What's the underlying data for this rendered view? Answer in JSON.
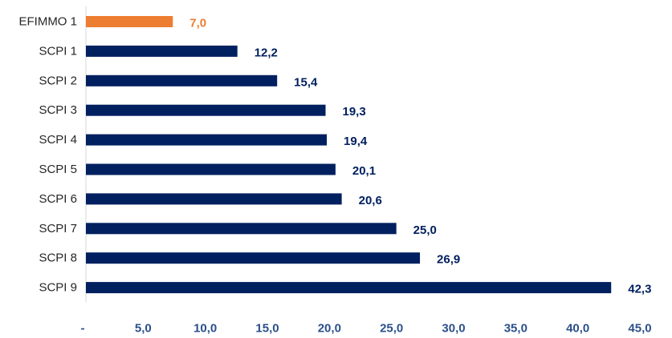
{
  "chart_data": {
    "type": "bar",
    "orientation": "horizontal",
    "categories": [
      "EFIMMO 1",
      "SCPI 1",
      "SCPI 2",
      "SCPI 3",
      "SCPI 4",
      "SCPI 5",
      "SCPI 6",
      "SCPI 7",
      "SCPI 8",
      "SCPI 9"
    ],
    "values": [
      7.0,
      12.2,
      15.4,
      19.3,
      19.4,
      20.1,
      20.6,
      25.0,
      26.9,
      42.3
    ],
    "value_labels": [
      "7,0",
      "12,2",
      "15,4",
      "19,3",
      "19,4",
      "20,1",
      "20,6",
      "25,0",
      "26,9",
      "42,3"
    ],
    "x_ticks": [
      0,
      5,
      10,
      15,
      20,
      25,
      30,
      35,
      40,
      45
    ],
    "x_tick_labels": [
      "-",
      "5,0",
      "10,0",
      "15,0",
      "20,0",
      "25,0",
      "30,0",
      "35,0",
      "40,0",
      "45,0"
    ],
    "xlim": [
      0,
      45
    ],
    "grid": false,
    "legend": "none",
    "colors": {
      "highlight": "#ED7D31",
      "bars": "#002060",
      "tick_labels": "#2B4F8A",
      "category_labels": "#262626"
    },
    "highlight_category": "EFIMMO 1"
  }
}
